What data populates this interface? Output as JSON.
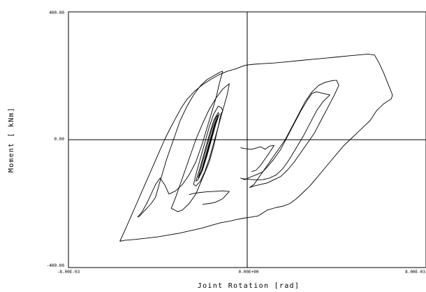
{
  "chart_data": {
    "type": "line",
    "xlabel": "Joint Rotation [rad]",
    "ylabel": "Moment [ kNm]",
    "xlim": [
      -0.008,
      0.008
    ],
    "ylim": [
      -400,
      400
    ],
    "x_tick_labels": [
      "-8.00E-03",
      "0.00E+00",
      "8.00E-03"
    ],
    "y_tick_labels": [
      "400.00",
      "0.00",
      "-400.00"
    ],
    "grid": false,
    "zero_lines": true,
    "line_color": "#000000",
    "series": [
      {
        "x": [
          -0.0057,
          -0.00545,
          -0.0052,
          -0.00495,
          -0.0047,
          -0.00445,
          -0.0042,
          -0.00395,
          -0.0037,
          -0.00345,
          -0.0032,
          -0.00295,
          -0.0027,
          -0.00235,
          -0.002,
          -0.00165,
          -0.0013,
          -0.0009,
          -0.0005,
          -0.0001,
          0.0003,
          0.0007,
          0.0012,
          0.0018,
          0.0024,
          0.003,
          0.0036,
          0.0039,
          0.0042,
          0.0045,
          0.0048,
          0.0051,
          0.0054,
          0.0057,
          0.0059,
          0.0061,
          0.0063,
          0.0065,
          0.00645,
          0.0061,
          0.0058,
          0.0055,
          0.0052,
          0.0049,
          0.0046,
          0.0043,
          0.004,
          0.0037,
          0.0034,
          0.0031,
          0.0028,
          0.0025,
          0.0022,
          0.0019,
          0.0016,
          0.0013,
          0.0009,
          0.0005,
          0.0002,
          -0.0002,
          -0.0005,
          -0.0008,
          -0.0012,
          -0.0016,
          -0.002,
          -0.0025,
          -0.003,
          -0.0035,
          -0.004,
          -0.0045,
          -0.005,
          -0.0055,
          -0.0057
        ],
        "y": [
          -318,
          -280,
          -240,
          -200,
          -160,
          -120,
          -80,
          -40,
          0,
          35,
          68,
          100,
          126,
          152,
          172,
          188,
          202,
          214,
          222,
          233,
          236,
          238,
          240,
          244,
          248,
          252,
          256,
          258,
          260,
          262,
          264,
          266,
          268,
          265,
          240,
          210,
          175,
          140,
          128,
          112,
          92,
          60,
          40,
          20,
          0,
          -20,
          -45,
          -70,
          -95,
          -120,
          -145,
          -165,
          -185,
          -200,
          -208,
          -212,
          -220,
          -238,
          -242,
          -246,
          -250,
          -255,
          -260,
          -268,
          -276,
          -284,
          -292,
          -298,
          -304,
          -308,
          -312,
          -315,
          -318
        ]
      },
      {
        "x": [
          -0.0041,
          -0.0039,
          -0.0036,
          -0.0033,
          -0.003,
          -0.0027,
          -0.0024,
          -0.0021,
          -0.0018,
          -0.0015,
          -0.0013,
          -0.0012,
          -0.0011,
          -0.00125,
          -0.0014,
          -0.0017,
          -0.002,
          -0.0023,
          -0.0026,
          -0.0029,
          -0.0032,
          -0.0035,
          -0.0037,
          -0.0039,
          -0.0041,
          -0.0043,
          -0.0045,
          -0.0047,
          -0.0049,
          -0.0048,
          -0.0047,
          -0.0045,
          -0.0043,
          -0.0041
        ],
        "y": [
          -180,
          -130,
          -60,
          0,
          60,
          104,
          140,
          168,
          188,
          200,
          208,
          212,
          214,
          175,
          130,
          60,
          -10,
          -70,
          -110,
          -140,
          -160,
          -170,
          -140,
          -120,
          -140,
          -170,
          -200,
          -225,
          -242,
          -238,
          -230,
          -215,
          -200,
          -180
        ]
      },
      {
        "x": [
          -0.0034,
          -0.0032,
          -0.0029,
          -0.0026,
          -0.0023,
          -0.002,
          -0.0017,
          -0.0014,
          -0.0011,
          -0.0009,
          -0.0008,
          -0.0009,
          -0.0011,
          -0.0013,
          -0.0015,
          -0.0017,
          -0.002,
          -0.0023,
          -0.0026,
          -0.0029,
          -0.0031,
          -0.0032,
          -0.0033,
          -0.0034
        ],
        "y": [
          -215,
          -180,
          -120,
          -60,
          0,
          50,
          95,
          130,
          158,
          170,
          175,
          140,
          90,
          40,
          -20,
          -70,
          -120,
          -170,
          -200,
          -220,
          -225,
          -222,
          -218,
          -215
        ]
      },
      {
        "x": [
          -0.0024,
          -0.0023,
          -0.0021,
          -0.0019,
          -0.0017,
          -0.0015,
          -0.0013,
          -0.00115,
          -0.0011,
          -0.00118,
          -0.0013,
          -0.0015,
          -0.0017,
          -0.0019,
          -0.0021,
          -0.0023,
          -0.0024
        ],
        "y": [
          -140,
          -110,
          -60,
          -10,
          40,
          80,
          105,
          100,
          90,
          80,
          40,
          -10,
          -60,
          -100,
          -130,
          -145,
          -140
        ]
      },
      {
        "x": [
          -0.0023,
          -0.0021,
          -0.0019,
          -0.0017,
          -0.0015,
          -0.0013,
          -0.00125,
          -0.0014,
          -0.0016,
          -0.0018,
          -0.002,
          -0.0022,
          -0.0023
        ],
        "y": [
          -130,
          -85,
          -35,
          15,
          60,
          85,
          80,
          50,
          0,
          -50,
          -95,
          -125,
          -130
        ]
      },
      {
        "x": [
          -0.0022,
          -0.002,
          -0.0018,
          -0.0016,
          -0.0014,
          -0.0013,
          -0.0014,
          -0.0016,
          -0.0018,
          -0.002,
          -0.0022
        ],
        "y": [
          -120,
          -70,
          -20,
          30,
          70,
          78,
          55,
          10,
          -40,
          -90,
          -120
        ]
      },
      {
        "x": [
          -0.0021,
          -0.0019,
          -0.0017,
          -0.0015,
          -0.00135,
          -0.0015,
          -0.0017,
          -0.0019,
          -0.0021
        ],
        "y": [
          -110,
          -60,
          -10,
          40,
          70,
          30,
          -20,
          -70,
          -110
        ]
      },
      {
        "x": [
          -0.0026,
          -0.0024,
          -0.0021,
          -0.0018,
          -0.0015,
          -0.0011,
          -0.0008,
          -0.0011,
          -0.0014,
          -0.0017,
          -0.002
        ],
        "y": [
          -172,
          -168,
          -165,
          -163,
          -162,
          -160,
          -162,
          -185,
          -195,
          -200,
          -202
        ]
      },
      {
        "x": [
          0.0001,
          0.0003,
          0.0005,
          0.0007,
          0.0009,
          0.0011,
          0.0014,
          0.0017,
          0.002,
          0.0023,
          0.0026,
          0.0029,
          0.0032,
          0.0035,
          0.0038,
          0.004,
          0.0041,
          0.0039,
          0.0036,
          0.0033,
          0.003,
          0.0027,
          0.0024,
          0.0021,
          0.0018,
          0.0015,
          0.0012,
          0.0009,
          0.0006,
          0.0003,
          0.0001
        ],
        "y": [
          -150,
          -140,
          -120,
          -100,
          -80,
          -60,
          -30,
          0,
          40,
          80,
          120,
          150,
          170,
          180,
          185,
          186,
          170,
          140,
          100,
          60,
          20,
          -10,
          -40,
          -70,
          -95,
          -115,
          -125,
          -135,
          -140,
          -145,
          -150
        ]
      },
      {
        "x": [
          -0.0003,
          -0.0001,
          0.0001,
          0.0004,
          0.0007,
          0.0009,
          0.0012,
          0.0015,
          0.0018,
          0.0021,
          0.0024,
          0.0027,
          0.0029,
          0.0031,
          0.0034,
          0.0037,
          0.0034,
          0.0031,
          0.0028,
          0.0025,
          0.0022,
          0.0019,
          0.0016,
          0.0013,
          0.001,
          0.0007,
          0.0004,
          0.0001,
          -0.0002,
          -0.0003
        ],
        "y": [
          -120,
          -125,
          -118,
          -110,
          -100,
          -85,
          -60,
          -30,
          10,
          50,
          90,
          125,
          145,
          150,
          145,
          140,
          120,
          90,
          50,
          10,
          -25,
          -60,
          -90,
          -110,
          -120,
          -125,
          -126,
          -124,
          -122,
          -120
        ]
      },
      {
        "x": [
          -0.0003,
          -0.0001,
          0.0002,
          0.0004,
          0.0006,
          0.0008,
          0.001,
          0.0012,
          0.001,
          0.0008,
          0.0006,
          0.0004,
          0.0002
        ],
        "y": [
          -25,
          -28,
          -30,
          -26,
          -22,
          -30,
          -20,
          -18,
          -40,
          -60,
          -80,
          -95,
          -100
        ]
      }
    ]
  }
}
